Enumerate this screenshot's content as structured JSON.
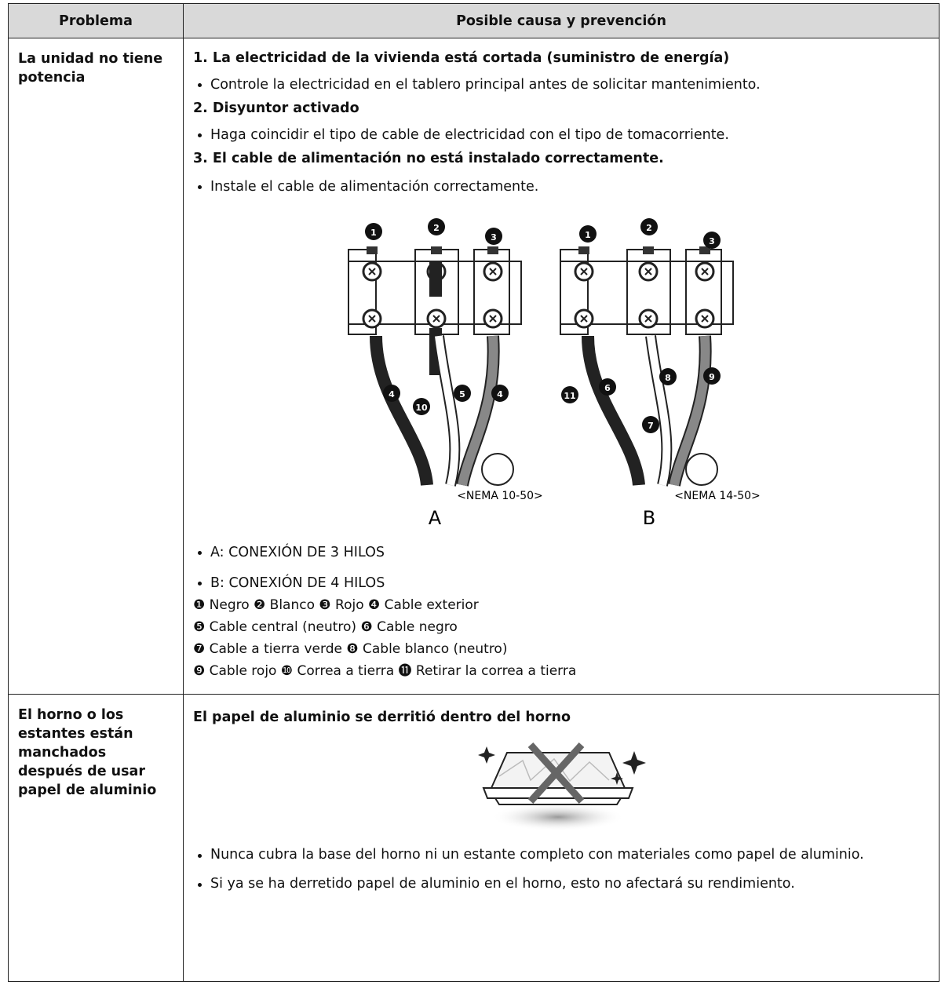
{
  "table": {
    "headers": [
      "Problema",
      "Posible causa y prevención"
    ],
    "rows": [
      {
        "problem": "La unidad no tiene potencia",
        "causes": [
          {
            "title": "1. La electricidad de la vivienda está cortada (suministro de energía)",
            "bullet": "Controle la electricidad en el tablero principal antes de solicitar mantenimiento."
          },
          {
            "title": "2. Disyuntor activado",
            "bullet": "Haga coincidir el tipo de cable de electricidad con el tipo de tomacorriente."
          },
          {
            "title": "3. El cable de alimentación no está instalado correctamente.",
            "bullet": "Instale el cable de alimentación correctamente."
          }
        ],
        "diagram_a": {
          "callouts": [
            "1",
            "2",
            "3",
            "4",
            "10",
            "5",
            "4"
          ],
          "plug": "<NEMA 10-50>",
          "label": "A"
        },
        "diagram_b": {
          "callouts": [
            "1",
            "2",
            "3",
            "11",
            "6",
            "8",
            "9",
            "7"
          ],
          "plug": "<NEMA 14-50>",
          "label": "B"
        },
        "notes": [
          "A: CONEXIÓN DE 3 HILOS",
          "B: CONEXIÓN DE 4 HILOS"
        ],
        "legend": [
          "❶ Negro ❷ Blanco ❸ Rojo ❹ Cable exterior",
          "❺ Cable central (neutro) ❻ Cable negro",
          "❼ Cable a tierra verde ❽ Cable blanco (neutro)",
          "❾ Cable rojo ❿ Correa a tierra ⓫ Retirar la correa a tierra"
        ]
      },
      {
        "problem": "El horno o los estantes están manchados después de usar papel de aluminio",
        "cause": "El papel de aluminio se derritió dentro del horno",
        "bullets": [
          "Nunca cubra la base del horno ni un estante completo con materiales como papel de aluminio.",
          "Si ya se ha derretido papel de aluminio en el horno, esto no afectará su rendimiento."
        ]
      }
    ]
  }
}
